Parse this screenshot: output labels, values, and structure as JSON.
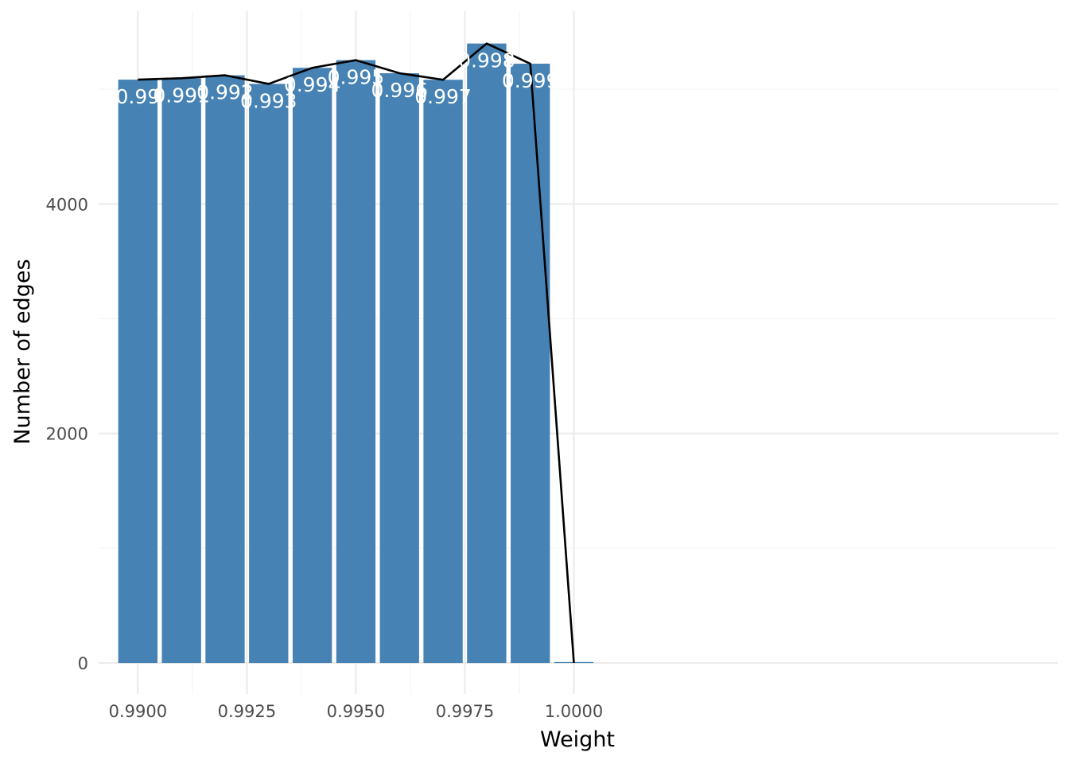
{
  "chart_data": {
    "type": "bar",
    "xlabel": "Weight",
    "ylabel": "Number of edges",
    "x": [
      0.99,
      0.991,
      0.992,
      0.993,
      0.994,
      0.995,
      0.996,
      0.997,
      0.998,
      0.999,
      1.0
    ],
    "values": [
      5083,
      5095,
      5121,
      5046,
      5186,
      5253,
      5139,
      5082,
      5398,
      5222,
      0
    ],
    "bar_labels": [
      "0.99",
      "0.991",
      "0.992",
      "0.993",
      "0.994",
      "0.995",
      "0.996",
      "0.997",
      "0.998",
      "0.999",
      ""
    ],
    "line_values": [
      5083,
      5095,
      5121,
      5046,
      5186,
      5253,
      5139,
      5082,
      5398,
      5222,
      0
    ],
    "xlim": [
      0.9891,
      1.0111
    ],
    "ylim": [
      -270,
      5680
    ],
    "x_ticks": [
      0.99,
      0.9925,
      0.995,
      0.9975,
      1.0
    ],
    "x_tick_labels": [
      "0.9900",
      "0.9925",
      "0.9950",
      "0.9975",
      "1.0000"
    ],
    "y_ticks": [
      0,
      2000,
      4000
    ],
    "y_tick_labels": [
      "0",
      "2000",
      "4000"
    ],
    "y_minor_ticks": [
      1000,
      3000,
      5000
    ],
    "x_minor_ticks": [
      0.99125,
      0.99375,
      0.99625,
      0.99875
    ],
    "bar_width": 0.0009,
    "grid": true,
    "legend": "none",
    "colors": {
      "bar": "#4682b4",
      "line": "#000000",
      "bar_label": "#ffffff"
    }
  }
}
